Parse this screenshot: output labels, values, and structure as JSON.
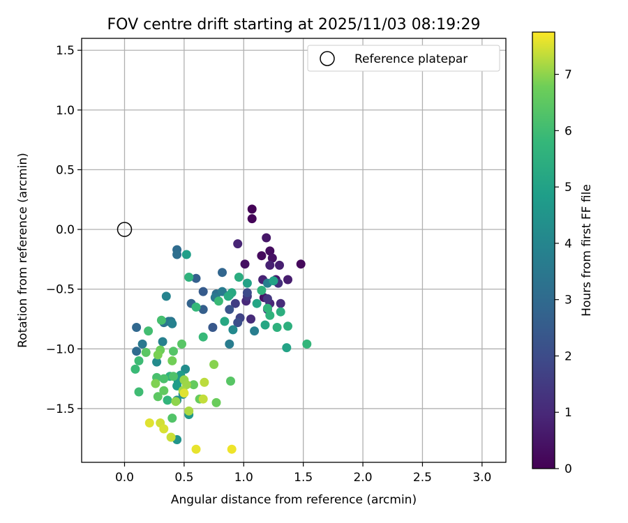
{
  "chart_data": {
    "type": "scatter",
    "title": "FOV centre drift starting at 2025/11/03 08:19:29",
    "xlabel": "Angular distance from reference (arcmin)",
    "ylabel": "Rotation from reference (arcmin)",
    "xlim": [
      -0.36,
      3.2
    ],
    "ylim": [
      -1.95,
      1.6
    ],
    "xticks": [
      0.0,
      0.5,
      1.0,
      1.5,
      2.0,
      2.5,
      3.0
    ],
    "yticks": [
      -1.5,
      -1.0,
      -0.5,
      0.0,
      0.5,
      1.0,
      1.5
    ],
    "grid": true,
    "legend": {
      "position": "top-right",
      "label": "Reference platepar"
    },
    "reference": {
      "x": 0.0,
      "y": 0.0
    },
    "colorbar": {
      "label": "Hours from first FF file",
      "colormap": "viridis",
      "range": [
        0,
        7.75
      ],
      "ticks": [
        0,
        1,
        2,
        3,
        4,
        5,
        6,
        7
      ]
    },
    "points": [
      [
        1.07,
        0.17,
        0.05
      ],
      [
        1.07,
        0.09,
        0.1
      ],
      [
        1.48,
        -0.29,
        0.2
      ],
      [
        1.15,
        -0.22,
        0.25
      ],
      [
        1.22,
        -0.18,
        0.3
      ],
      [
        1.01,
        -0.29,
        0.35
      ],
      [
        1.24,
        -0.24,
        0.4
      ],
      [
        1.17,
        -0.57,
        0.45
      ],
      [
        1.19,
        -0.07,
        0.55
      ],
      [
        1.27,
        -0.42,
        0.6
      ],
      [
        1.37,
        -0.42,
        0.7
      ],
      [
        1.3,
        -0.3,
        0.75
      ],
      [
        1.22,
        -0.3,
        0.8
      ],
      [
        1.16,
        -0.42,
        0.85
      ],
      [
        0.95,
        -0.12,
        0.9
      ],
      [
        1.22,
        -0.62,
        0.95
      ],
      [
        1.02,
        -0.6,
        1.0
      ],
      [
        1.06,
        -0.75,
        1.05
      ],
      [
        1.31,
        -0.62,
        1.1
      ],
      [
        1.29,
        -0.45,
        1.2
      ],
      [
        1.2,
        -0.67,
        1.25
      ],
      [
        1.2,
        -0.58,
        1.35
      ],
      [
        1.03,
        -0.56,
        1.45
      ],
      [
        0.93,
        -0.62,
        1.6
      ],
      [
        0.97,
        -0.74,
        1.75
      ],
      [
        1.03,
        -0.53,
        2.0
      ],
      [
        0.95,
        -0.78,
        2.1
      ],
      [
        0.88,
        -0.67,
        2.25
      ],
      [
        0.74,
        -0.82,
        2.4
      ],
      [
        0.66,
        -0.52,
        2.5
      ],
      [
        0.66,
        -0.67,
        2.6
      ],
      [
        0.6,
        -0.41,
        2.65
      ],
      [
        0.56,
        -0.62,
        2.75
      ],
      [
        0.82,
        -0.36,
        2.85
      ],
      [
        0.1,
        -0.82,
        2.9
      ],
      [
        0.1,
        -1.02,
        3.0
      ],
      [
        0.44,
        -0.17,
        3.05
      ],
      [
        0.44,
        -0.21,
        3.15
      ],
      [
        0.77,
        -0.54,
        3.2
      ],
      [
        0.33,
        -0.78,
        3.3
      ],
      [
        0.39,
        -0.77,
        3.4
      ],
      [
        0.37,
        -0.77,
        3.45
      ],
      [
        0.15,
        -0.96,
        3.5
      ],
      [
        0.76,
        -0.57,
        3.55
      ],
      [
        0.82,
        -0.52,
        3.6
      ],
      [
        0.88,
        -0.96,
        3.65
      ],
      [
        1.09,
        -0.85,
        3.7
      ],
      [
        1.2,
        -0.45,
        3.75
      ],
      [
        0.32,
        -0.94,
        3.8
      ],
      [
        0.4,
        -0.79,
        3.85
      ],
      [
        0.35,
        -0.56,
        3.9
      ],
      [
        0.88,
        -0.55,
        4.0
      ],
      [
        0.91,
        -0.84,
        4.1
      ],
      [
        0.27,
        -1.11,
        4.2
      ],
      [
        0.51,
        -1.17,
        4.25
      ],
      [
        0.44,
        -1.43,
        4.3
      ],
      [
        0.49,
        -1.38,
        4.35
      ],
      [
        0.44,
        -1.76,
        4.5
      ],
      [
        0.54,
        -1.55,
        4.6
      ],
      [
        0.45,
        -1.27,
        4.7
      ],
      [
        0.47,
        -1.22,
        4.75
      ],
      [
        0.44,
        -1.31,
        4.8
      ],
      [
        0.52,
        -0.21,
        4.9
      ],
      [
        1.25,
        -0.43,
        5.0
      ],
      [
        1.03,
        -0.45,
        5.0
      ],
      [
        1.36,
        -0.99,
        5.05
      ],
      [
        1.11,
        -0.62,
        5.1
      ],
      [
        1.18,
        -0.8,
        5.15
      ],
      [
        0.84,
        -0.77,
        5.2
      ],
      [
        0.9,
        -0.53,
        5.25
      ],
      [
        0.87,
        -0.56,
        5.35
      ],
      [
        0.96,
        -0.4,
        5.4
      ],
      [
        1.31,
        -0.69,
        5.45
      ],
      [
        1.37,
        -0.81,
        5.5
      ],
      [
        1.28,
        -0.82,
        5.55
      ],
      [
        1.22,
        -0.72,
        5.6
      ],
      [
        1.15,
        -0.51,
        5.65
      ],
      [
        1.2,
        -0.66,
        5.7
      ],
      [
        1.53,
        -0.96,
        5.75
      ],
      [
        0.54,
        -0.4,
        5.6
      ],
      [
        0.6,
        -0.65,
        5.8
      ],
      [
        0.66,
        -0.9,
        5.85
      ],
      [
        0.79,
        -0.6,
        5.9
      ],
      [
        0.38,
        -1.23,
        5.6
      ],
      [
        0.36,
        -1.43,
        5.7
      ],
      [
        0.09,
        -1.17,
        5.9
      ],
      [
        0.12,
        -1.1,
        5.95
      ],
      [
        0.12,
        -1.36,
        6.0
      ],
      [
        0.2,
        -0.85,
        6.05
      ],
      [
        0.31,
        -0.76,
        6.1
      ],
      [
        0.27,
        -1.24,
        6.15
      ],
      [
        0.33,
        -1.25,
        6.2
      ],
      [
        0.41,
        -1.23,
        6.25
      ],
      [
        0.4,
        -1.58,
        6.3
      ],
      [
        0.41,
        -1.02,
        6.35
      ],
      [
        0.48,
        -0.96,
        6.4
      ],
      [
        0.18,
        -1.03,
        6.45
      ],
      [
        0.28,
        -1.4,
        6.5
      ],
      [
        0.33,
        -1.35,
        6.55
      ],
      [
        0.58,
        -1.3,
        6.6
      ],
      [
        0.63,
        -1.42,
        6.65
      ],
      [
        0.77,
        -1.45,
        6.7
      ],
      [
        0.3,
        -1.01,
        6.75
      ],
      [
        0.4,
        -1.1,
        6.8
      ],
      [
        0.28,
        -1.05,
        6.85
      ],
      [
        0.26,
        -1.29,
        6.9
      ],
      [
        0.89,
        -1.27,
        6.4
      ],
      [
        0.75,
        -1.13,
        6.95
      ],
      [
        0.43,
        -1.44,
        7.0
      ],
      [
        0.5,
        -1.26,
        7.05
      ],
      [
        0.52,
        -1.3,
        7.1
      ],
      [
        0.49,
        -1.35,
        7.15
      ],
      [
        0.54,
        -1.52,
        7.2
      ],
      [
        0.67,
        -1.28,
        7.3
      ],
      [
        0.66,
        -1.42,
        7.35
      ],
      [
        0.39,
        -1.74,
        7.4
      ],
      [
        0.3,
        -1.62,
        7.45
      ],
      [
        0.33,
        -1.67,
        7.5
      ],
      [
        0.21,
        -1.62,
        7.55
      ],
      [
        0.6,
        -1.84,
        7.6
      ],
      [
        0.9,
        -1.84,
        7.65
      ],
      [
        0.5,
        -1.37,
        7.55
      ]
    ]
  }
}
